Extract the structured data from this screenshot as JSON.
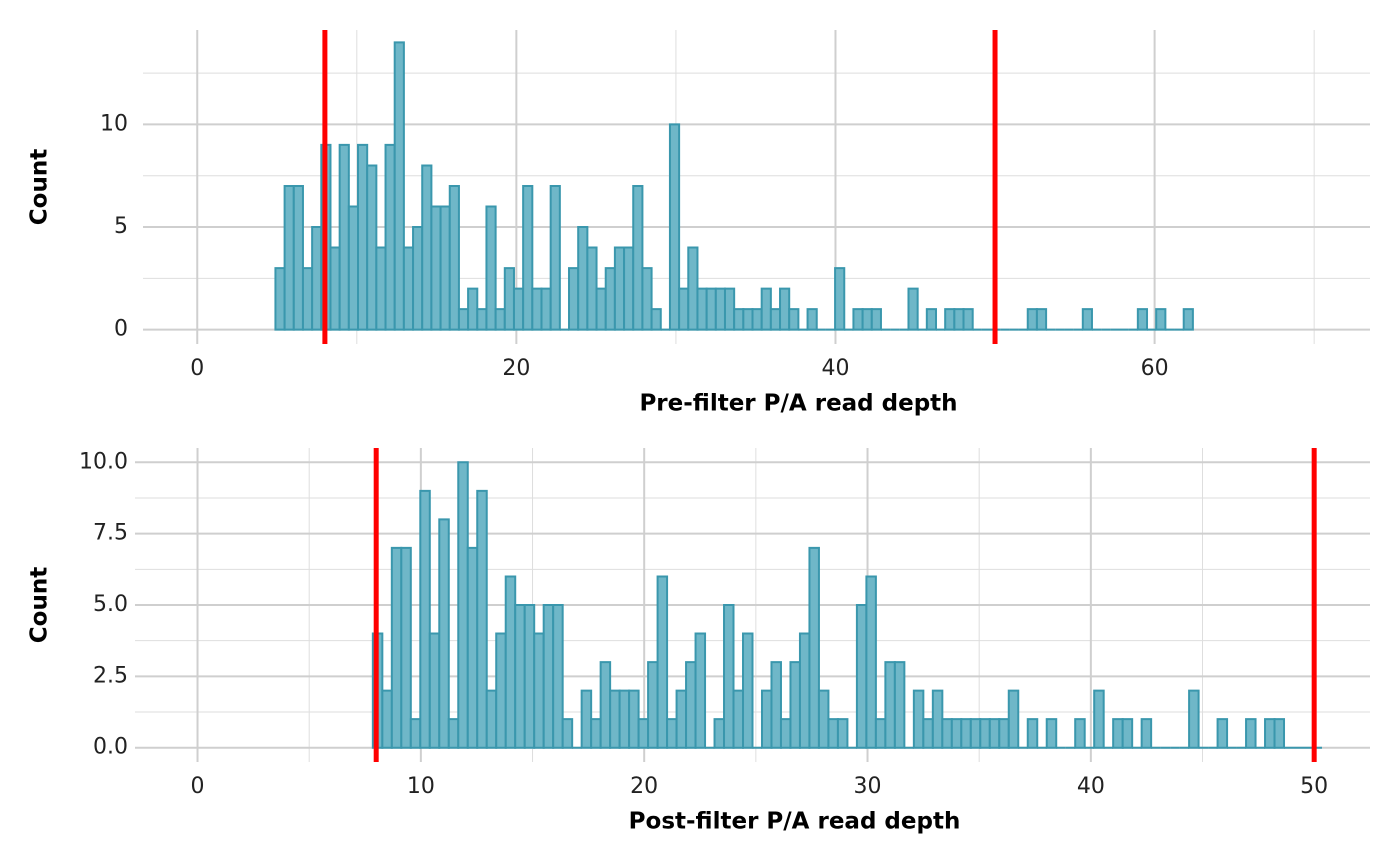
{
  "chart_data": [
    {
      "type": "histogram",
      "xlabel": "Pre-filter P/A read depth",
      "ylabel": "Count",
      "bins": [
        4.9,
        5.475,
        6.05,
        6.625,
        7.2,
        7.775,
        8.35,
        8.925,
        9.5,
        10.075,
        10.65,
        11.225,
        11.8,
        12.375,
        12.95,
        13.525,
        14.1,
        14.675,
        15.25,
        15.825,
        16.4,
        16.975,
        17.55,
        18.125,
        18.7,
        19.275,
        19.85,
        20.425,
        21.0,
        21.575,
        22.15,
        22.725,
        23.3,
        23.875,
        24.45,
        25.025,
        25.6,
        26.175,
        26.75,
        27.325,
        27.9,
        28.475,
        29.05,
        29.625,
        30.2,
        30.775,
        31.35,
        31.925,
        32.5,
        33.075,
        33.65,
        34.225,
        34.8,
        35.375,
        35.95,
        36.525,
        37.1,
        37.675,
        38.25,
        38.825,
        39.4,
        39.975,
        40.55,
        41.125,
        41.7,
        42.275,
        42.85,
        43.425,
        44.0,
        44.575,
        45.15,
        45.725,
        46.3,
        46.875,
        47.45,
        48.025,
        48.6,
        49.175,
        49.75,
        50.325,
        50.9,
        51.475,
        52.05,
        52.625,
        53.2,
        53.775,
        54.35,
        54.925,
        55.5,
        56.075,
        56.65,
        57.225,
        57.8,
        58.375,
        58.95,
        59.525,
        60.1,
        60.675,
        61.25,
        61.825,
        62.4
      ],
      "values": [
        3,
        7,
        7,
        3,
        5,
        9,
        4,
        9,
        6,
        9,
        8,
        4,
        9,
        14,
        4,
        5,
        8,
        6,
        6,
        7,
        1,
        2,
        1,
        6,
        1,
        3,
        2,
        7,
        2,
        2,
        7,
        0,
        3,
        5,
        4,
        2,
        3,
        4,
        4,
        7,
        3,
        1,
        0,
        10,
        2,
        4,
        2,
        2,
        2,
        2,
        1,
        1,
        1,
        2,
        1,
        2,
        1,
        0,
        1,
        0,
        0,
        3,
        0,
        1,
        1,
        1,
        0,
        0,
        0,
        2,
        0,
        1,
        0,
        1,
        1,
        1,
        0,
        0,
        0,
        0,
        0,
        0,
        1,
        1,
        0,
        0,
        0,
        0,
        1,
        0,
        0,
        0,
        0,
        0,
        1,
        0,
        1,
        0,
        0,
        1
      ],
      "color": "#6fb7c8",
      "edgecolor": "#3a97ad",
      "vlines": [
        8,
        50
      ],
      "vline_color": "#ff0000",
      "xlim": [
        -3.4,
        73.5
      ],
      "xticks": [
        0,
        20,
        40,
        60
      ],
      "ylim": [
        -0.7,
        14.6
      ],
      "yticks": [
        0,
        5,
        10
      ],
      "grid": true
    },
    {
      "type": "histogram",
      "xlabel": "Post-filter P/A read depth",
      "ylabel": "Count",
      "bins": [
        7.85,
        8.275,
        8.7,
        9.125,
        9.55,
        9.975,
        10.4,
        10.825,
        11.25,
        11.675,
        12.1,
        12.525,
        12.95,
        13.375,
        13.8,
        14.225,
        14.65,
        15.075,
        15.5,
        15.925,
        16.35,
        16.775,
        17.2,
        17.625,
        18.05,
        18.475,
        18.9,
        19.325,
        19.75,
        20.175,
        20.6,
        21.025,
        21.45,
        21.875,
        22.3,
        22.725,
        23.15,
        23.575,
        24.0,
        24.425,
        24.85,
        25.275,
        25.7,
        26.125,
        26.55,
        26.975,
        27.4,
        27.825,
        28.25,
        28.675,
        29.1,
        29.525,
        29.95,
        30.375,
        30.8,
        31.225,
        31.65,
        32.075,
        32.5,
        32.925,
        33.35,
        33.775,
        34.2,
        34.625,
        35.05,
        35.475,
        35.9,
        36.325,
        36.75,
        37.175,
        37.6,
        38.025,
        38.45,
        38.875,
        39.3,
        39.725,
        40.15,
        40.575,
        41.0,
        41.425,
        41.85,
        42.275,
        42.7,
        43.125,
        43.55,
        43.975,
        44.4,
        44.825,
        45.25,
        45.675,
        46.1,
        46.525,
        46.95,
        47.375,
        47.8,
        48.225,
        48.65,
        49.075,
        49.5,
        49.925,
        50.35
      ],
      "values": [
        4,
        2,
        7,
        7,
        1,
        9,
        4,
        8,
        1,
        10,
        7,
        9,
        2,
        4,
        6,
        5,
        5,
        4,
        5,
        5,
        1,
        0,
        2,
        1,
        3,
        2,
        2,
        2,
        1,
        3,
        6,
        1,
        2,
        3,
        4,
        0,
        1,
        5,
        2,
        4,
        0,
        2,
        3,
        1,
        3,
        4,
        7,
        2,
        1,
        1,
        0,
        5,
        6,
        1,
        3,
        3,
        0,
        2,
        1,
        2,
        1,
        1,
        1,
        1,
        1,
        1,
        1,
        2,
        0,
        1,
        0,
        1,
        0,
        0,
        1,
        0,
        2,
        0,
        1,
        1,
        0,
        1,
        0,
        0,
        0,
        0,
        2,
        0,
        0,
        1,
        0,
        0,
        1,
        0,
        1,
        1,
        0,
        0,
        0,
        0
      ],
      "color": "#6fb7c8",
      "edgecolor": "#3a97ad",
      "vlines": [
        8,
        50
      ],
      "vline_color": "#ff0000",
      "xlim": [
        -2.8,
        52.5
      ],
      "xticks": [
        0,
        10,
        20,
        30,
        40,
        50
      ],
      "ylim": [
        -0.5,
        10.5
      ],
      "yticks": [
        {
          "value": 0,
          "label": "0.0"
        },
        2.5,
        {
          "value": 5,
          "label": "5.0"
        },
        7.5,
        {
          "value": 10,
          "label": "10.0"
        }
      ],
      "grid": true
    }
  ]
}
